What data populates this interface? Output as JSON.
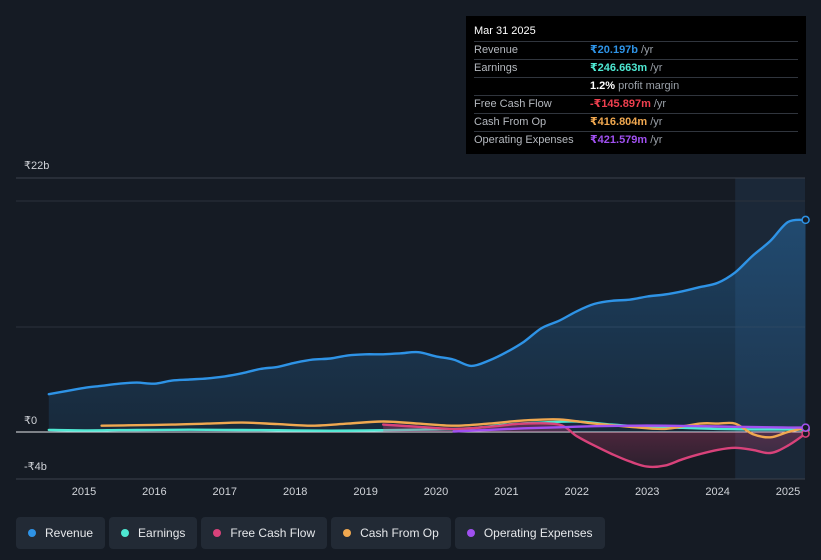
{
  "tooltip": {
    "date": "Mar 31 2025",
    "rows": [
      {
        "label": "Revenue",
        "value": "₹20.197b",
        "unit": "/yr",
        "color": "#2e93e6"
      },
      {
        "label": "Earnings",
        "value": "₹246.663m",
        "unit": "/yr",
        "color": "#4ee8d2"
      },
      {
        "label": "",
        "value": "1.2%",
        "unit": "profit margin",
        "color": "#ffffff"
      },
      {
        "label": "Free Cash Flow",
        "value": "-₹145.897m",
        "unit": "/yr",
        "color": "#f0404f"
      },
      {
        "label": "Cash From Op",
        "value": "₹416.804m",
        "unit": "/yr",
        "color": "#f0a850"
      },
      {
        "label": "Operating Expenses",
        "value": "₹421.579m",
        "unit": "/yr",
        "color": "#a050f0"
      }
    ]
  },
  "legend": [
    {
      "label": "Revenue",
      "color": "#2e93e6"
    },
    {
      "label": "Earnings",
      "color": "#4ee8d2"
    },
    {
      "label": "Free Cash Flow",
      "color": "#d8427a"
    },
    {
      "label": "Cash From Op",
      "color": "#f0a850"
    },
    {
      "label": "Operating Expenses",
      "color": "#a050f0"
    }
  ],
  "chart_data": {
    "type": "line",
    "title": "",
    "xlabel": "",
    "ylabel": "",
    "unit": "₹ billions",
    "ylim": [
      -4,
      22
    ],
    "y_tick_labels": [
      {
        "value": 22,
        "label": "₹22b"
      },
      {
        "value": 0,
        "label": "₹0"
      },
      {
        "value": -4,
        "label": "-₹4b"
      }
    ],
    "x_tick_labels": [
      {
        "value": 2015,
        "label": "2015"
      },
      {
        "value": 2016,
        "label": "2016"
      },
      {
        "value": 2017,
        "label": "2017"
      },
      {
        "value": 2018,
        "label": "2018"
      },
      {
        "value": 2019,
        "label": "2019"
      },
      {
        "value": 2020,
        "label": "2020"
      },
      {
        "value": 2021,
        "label": "2021"
      },
      {
        "value": 2022,
        "label": "2022"
      },
      {
        "value": 2023,
        "label": "2023"
      },
      {
        "value": 2024,
        "label": "2024"
      },
      {
        "value": 2025,
        "label": "2025"
      }
    ],
    "xlim": [
      2013.55,
      2025.25
    ],
    "highlight_from": 2024.25,
    "series": [
      {
        "name": "Revenue",
        "color": "#2e93e6",
        "area": true,
        "x": [
          2014.5,
          2014.75,
          2015.0,
          2015.25,
          2015.5,
          2015.75,
          2016.0,
          2016.25,
          2016.5,
          2016.75,
          2017.0,
          2017.25,
          2017.5,
          2017.75,
          2018.0,
          2018.25,
          2018.5,
          2018.75,
          2019.0,
          2019.25,
          2019.5,
          2019.75,
          2020.0,
          2020.25,
          2020.5,
          2020.75,
          2021.0,
          2021.25,
          2021.5,
          2021.75,
          2022.0,
          2022.25,
          2022.5,
          2022.75,
          2023.0,
          2023.25,
          2023.5,
          2023.75,
          2024.0,
          2024.25,
          2024.5,
          2024.75,
          2025.0,
          2025.25
        ],
        "values": [
          3.6,
          3.9,
          4.2,
          4.4,
          4.6,
          4.7,
          4.6,
          4.9,
          5.0,
          5.1,
          5.3,
          5.6,
          6.0,
          6.2,
          6.6,
          6.9,
          7.0,
          7.3,
          7.4,
          7.4,
          7.5,
          7.6,
          7.2,
          6.9,
          6.3,
          6.8,
          7.6,
          8.6,
          9.9,
          10.6,
          11.5,
          12.2,
          12.5,
          12.6,
          12.9,
          13.1,
          13.4,
          13.8,
          14.2,
          15.2,
          16.8,
          18.2,
          20.0,
          20.2
        ]
      },
      {
        "name": "Earnings",
        "color": "#4ee8d2",
        "area": false,
        "x": [
          2014.5,
          2015.0,
          2015.5,
          2016.0,
          2016.5,
          2017.0,
          2017.5,
          2018.0,
          2018.5,
          2019.0,
          2019.5,
          2020.0,
          2020.5,
          2021.0,
          2021.5,
          2022.0,
          2022.5,
          2023.0,
          2023.5,
          2024.0,
          2024.5,
          2025.0,
          2025.25
        ],
        "values": [
          0.2,
          0.15,
          0.18,
          0.2,
          0.22,
          0.2,
          0.18,
          0.15,
          0.12,
          0.15,
          0.2,
          0.25,
          0.35,
          0.7,
          0.9,
          1.0,
          0.7,
          0.5,
          0.4,
          0.3,
          0.25,
          0.25,
          0.25
        ]
      },
      {
        "name": "Free Cash Flow",
        "color": "#d8427a",
        "area": true,
        "x": [
          2019.25,
          2019.75,
          2020.25,
          2020.75,
          2021.25,
          2021.75,
          2022.0,
          2022.25,
          2022.5,
          2022.75,
          2023.0,
          2023.25,
          2023.5,
          2023.75,
          2024.0,
          2024.25,
          2024.5,
          2024.75,
          2025.0,
          2025.25
        ],
        "values": [
          0.7,
          0.5,
          0.3,
          0.5,
          0.8,
          0.7,
          -0.4,
          -1.3,
          -2.1,
          -2.8,
          -3.3,
          -3.2,
          -2.6,
          -2.1,
          -1.7,
          -1.5,
          -1.7,
          -2.0,
          -1.3,
          -0.15
        ]
      },
      {
        "name": "Cash From Op",
        "color": "#f0a850",
        "area": false,
        "x": [
          2015.25,
          2015.75,
          2016.25,
          2016.75,
          2017.25,
          2017.75,
          2018.25,
          2018.75,
          2019.25,
          2019.75,
          2020.25,
          2020.75,
          2021.25,
          2021.75,
          2022.25,
          2022.75,
          2023.25,
          2023.75,
          2024.0,
          2024.25,
          2024.5,
          2024.75,
          2025.0,
          2025.25
        ],
        "values": [
          0.6,
          0.65,
          0.7,
          0.8,
          0.9,
          0.75,
          0.6,
          0.8,
          1.0,
          0.8,
          0.6,
          0.8,
          1.1,
          1.2,
          0.8,
          0.5,
          0.3,
          0.8,
          0.8,
          0.8,
          -0.2,
          -0.5,
          0.0,
          0.4
        ]
      },
      {
        "name": "Operating Expenses",
        "color": "#a050f0",
        "area": false,
        "x": [
          2020.25,
          2020.75,
          2021.25,
          2021.75,
          2022.25,
          2022.75,
          2023.25,
          2023.75,
          2024.25,
          2024.75,
          2025.0,
          2025.25
        ],
        "values": [
          0.05,
          0.2,
          0.35,
          0.45,
          0.55,
          0.6,
          0.6,
          0.55,
          0.5,
          0.45,
          0.42,
          0.42
        ]
      }
    ]
  }
}
